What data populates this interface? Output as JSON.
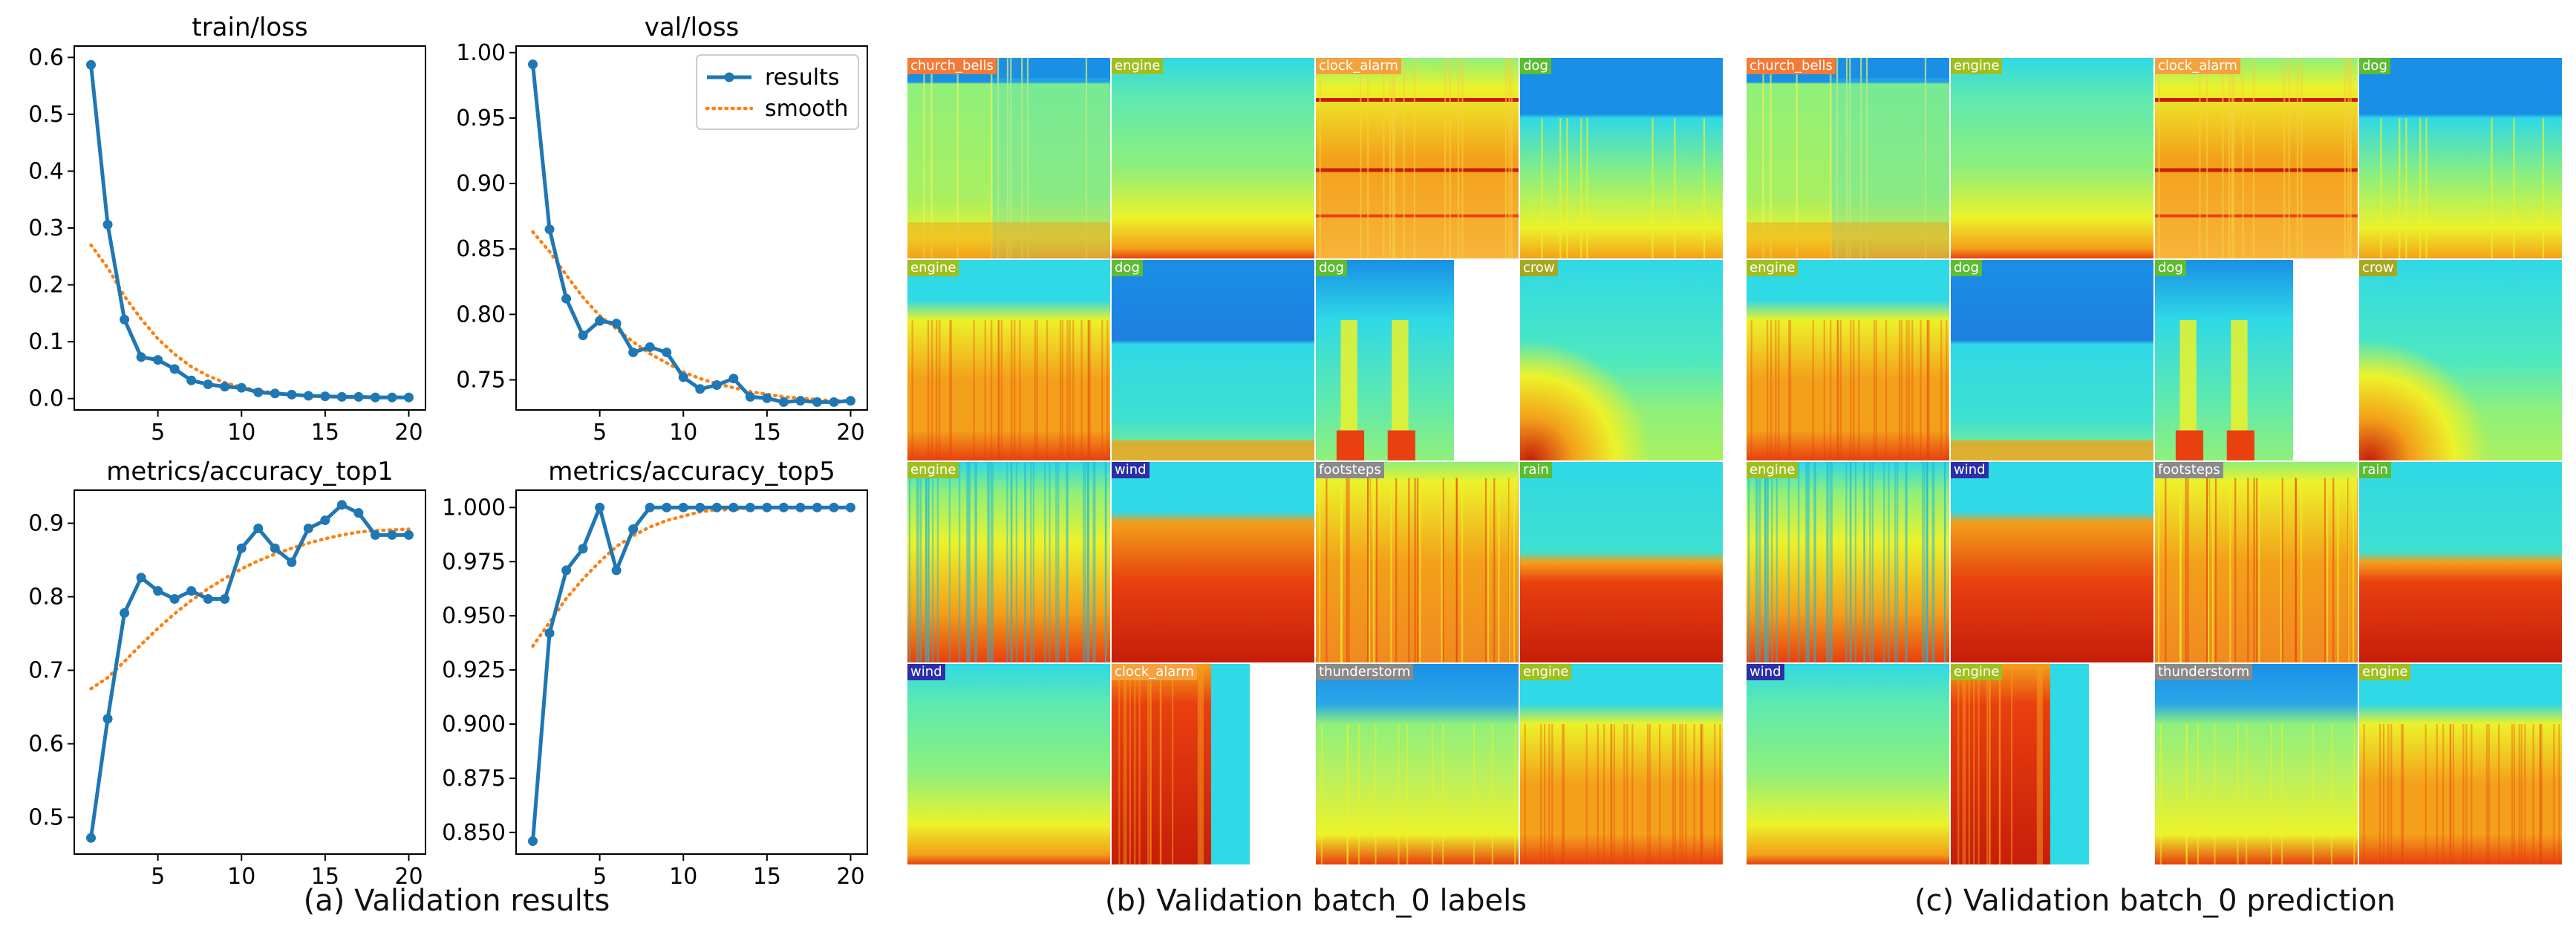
{
  "chart_data": [
    {
      "type": "line",
      "title": "train/loss",
      "x": [
        1,
        2,
        3,
        4,
        5,
        6,
        7,
        8,
        9,
        10,
        11,
        12,
        13,
        14,
        15,
        16,
        17,
        18,
        19,
        20
      ],
      "series": [
        {
          "name": "results",
          "values": [
            0.587,
            0.306,
            0.139,
            0.073,
            0.068,
            0.052,
            0.032,
            0.025,
            0.021,
            0.019,
            0.011,
            0.009,
            0.007,
            0.005,
            0.004,
            0.003,
            0.003,
            0.002,
            0.002,
            0.002
          ]
        },
        {
          "name": "smooth",
          "values": [
            0.27,
            0.23,
            0.18,
            0.14,
            0.105,
            0.078,
            0.056,
            0.04,
            0.028,
            0.02,
            0.014,
            0.01,
            0.007,
            0.005,
            0.004,
            0.003,
            0.002,
            0.002,
            0.002,
            0.002
          ]
        }
      ],
      "xlim": [
        0,
        21
      ],
      "ylim": [
        -0.02,
        0.62
      ],
      "xticks": [
        5,
        10,
        15,
        20
      ],
      "xtick_labels": [
        "5",
        "10",
        "15",
        "20"
      ],
      "yticks": [
        0.0,
        0.1,
        0.2,
        0.3,
        0.4,
        0.5,
        0.6
      ],
      "ytick_labels": [
        "0.0",
        "0.1",
        "0.2",
        "0.3",
        "0.4",
        "0.5",
        "0.6"
      ],
      "grid": false,
      "legend": "none"
    },
    {
      "type": "line",
      "title": "val/loss",
      "x": [
        1,
        2,
        3,
        4,
        5,
        6,
        7,
        8,
        9,
        10,
        11,
        12,
        13,
        14,
        15,
        16,
        17,
        18,
        19,
        20
      ],
      "series": [
        {
          "name": "results",
          "values": [
            0.991,
            0.865,
            0.812,
            0.784,
            0.795,
            0.793,
            0.771,
            0.775,
            0.771,
            0.752,
            0.743,
            0.746,
            0.751,
            0.737,
            0.736,
            0.733,
            0.734,
            0.733,
            0.733,
            0.734
          ]
        },
        {
          "name": "smooth",
          "values": [
            0.863,
            0.848,
            0.83,
            0.813,
            0.799,
            0.789,
            0.779,
            0.77,
            0.763,
            0.756,
            0.751,
            0.747,
            0.744,
            0.741,
            0.739,
            0.737,
            0.736,
            0.735,
            0.734,
            0.734
          ]
        }
      ],
      "xlim": [
        0,
        21
      ],
      "ylim": [
        0.727,
        1.005
      ],
      "xticks": [
        5,
        10,
        15,
        20
      ],
      "xtick_labels": [
        "5",
        "10",
        "15",
        "20"
      ],
      "yticks": [
        0.75,
        0.8,
        0.85,
        0.9,
        0.95,
        1.0
      ],
      "ytick_labels": [
        "0.75",
        "0.80",
        "0.85",
        "0.90",
        "0.95",
        "1.00"
      ],
      "grid": false,
      "legend": "top-right",
      "legend_entries": [
        "results",
        "smooth"
      ]
    },
    {
      "type": "line",
      "title": "metrics/accuracy_top1",
      "x": [
        1,
        2,
        3,
        4,
        5,
        6,
        7,
        8,
        9,
        10,
        11,
        12,
        13,
        14,
        15,
        16,
        17,
        18,
        19,
        20
      ],
      "series": [
        {
          "name": "results",
          "values": [
            0.472,
            0.634,
            0.778,
            0.826,
            0.808,
            0.797,
            0.808,
            0.797,
            0.797,
            0.866,
            0.893,
            0.866,
            0.847,
            0.893,
            0.904,
            0.925,
            0.914,
            0.884,
            0.884,
            0.884
          ]
        },
        {
          "name": "smooth",
          "values": [
            0.675,
            0.69,
            0.712,
            0.735,
            0.757,
            0.777,
            0.795,
            0.811,
            0.825,
            0.838,
            0.849,
            0.858,
            0.866,
            0.873,
            0.879,
            0.884,
            0.888,
            0.89,
            0.891,
            0.892
          ]
        }
      ],
      "xlim": [
        0,
        21
      ],
      "ylim": [
        0.45,
        0.945
      ],
      "xticks": [
        5,
        10,
        15,
        20
      ],
      "xtick_labels": [
        "5",
        "10",
        "15",
        "20"
      ],
      "yticks": [
        0.5,
        0.6,
        0.7,
        0.8,
        0.9
      ],
      "ytick_labels": [
        "0.5",
        "0.6",
        "0.7",
        "0.8",
        "0.9"
      ],
      "grid": false,
      "legend": "none"
    },
    {
      "type": "line",
      "title": "metrics/accuracy_top5",
      "x": [
        1,
        2,
        3,
        4,
        5,
        6,
        7,
        8,
        9,
        10,
        11,
        12,
        13,
        14,
        15,
        16,
        17,
        18,
        19,
        20
      ],
      "series": [
        {
          "name": "results",
          "values": [
            0.846,
            0.942,
            0.971,
            0.981,
            1.0,
            0.971,
            0.99,
            1.0,
            1.0,
            1.0,
            1.0,
            1.0,
            1.0,
            1.0,
            1.0,
            1.0,
            1.0,
            1.0,
            1.0,
            1.0
          ]
        },
        {
          "name": "smooth",
          "values": [
            0.936,
            0.947,
            0.958,
            0.967,
            0.975,
            0.982,
            0.987,
            0.991,
            0.994,
            0.996,
            0.998,
            0.999,
            0.999,
            1.0,
            1.0,
            1.0,
            1.0,
            1.0,
            1.0,
            1.0
          ]
        }
      ],
      "xlim": [
        0,
        21
      ],
      "ylim": [
        0.84,
        1.008
      ],
      "xticks": [
        5,
        10,
        15,
        20
      ],
      "xtick_labels": [
        "5",
        "10",
        "15",
        "20"
      ],
      "yticks": [
        0.85,
        0.875,
        0.9,
        0.925,
        0.95,
        0.975,
        1.0
      ],
      "ytick_labels": [
        "0.850",
        "0.875",
        "0.900",
        "0.925",
        "0.950",
        "0.975",
        "1.000"
      ],
      "grid": false,
      "legend": "none"
    }
  ],
  "colors": {
    "results": "#1f77b4",
    "smooth": "#ff7f0e",
    "label_orange": "#f47a38",
    "label_yellowgreen": "#9fbf1e",
    "label_green": "#5bbd32",
    "label_navy": "#2b2fa8",
    "label_olive": "#a5a822",
    "label_gray": "#8a8a8a",
    "label_lightorange": "#f3a23e"
  },
  "captions": {
    "a": "(a) Validation results",
    "b": "(b) Validation batch_0 labels",
    "c": "(c) Validation batch_0 prediction"
  },
  "batch_labels": {
    "rows": [
      [
        {
          "label": "church_bells",
          "color": "label_orange",
          "style": "bells"
        },
        {
          "label": "engine",
          "color": "label_yellowgreen",
          "style": "flat"
        },
        {
          "label": "clock_alarm",
          "color": "label_lightorange",
          "style": "bands"
        },
        {
          "label": "dog",
          "color": "label_green",
          "style": "bluetop"
        }
      ],
      [
        {
          "label": "engine",
          "color": "label_yellowgreen",
          "style": "warm"
        },
        {
          "label": "dog",
          "color": "label_green",
          "style": "bluebig"
        },
        {
          "label": "dog",
          "color": "label_green",
          "style": "streaks",
          "narrow": true
        },
        {
          "label": "crow",
          "color": "label_olive",
          "style": "crow"
        }
      ],
      [
        {
          "label": "engine",
          "color": "label_yellowgreen",
          "style": "stripes"
        },
        {
          "label": "wind",
          "color": "label_navy",
          "style": "hot"
        },
        {
          "label": "footsteps",
          "color": "label_gray",
          "style": "bars"
        },
        {
          "label": "rain",
          "color": "label_green",
          "style": "rain"
        }
      ],
      [
        {
          "label": "wind",
          "color": "label_navy",
          "style": "flat"
        },
        {
          "label": "clock_alarm",
          "color": "label_lightorange",
          "style": "hotnarrow",
          "narrow": true
        },
        {
          "label": "thunderstorm",
          "color": "label_gray",
          "style": "storm",
          "gap": true
        },
        {
          "label": "engine",
          "color": "label_yellowgreen",
          "style": "warm"
        }
      ]
    ]
  },
  "batch_predictions": {
    "rows": [
      [
        {
          "label": "church_bells",
          "color": "label_orange",
          "style": "bells"
        },
        {
          "label": "engine",
          "color": "label_yellowgreen",
          "style": "flat"
        },
        {
          "label": "clock_alarm",
          "color": "label_lightorange",
          "style": "bands"
        },
        {
          "label": "dog",
          "color": "label_green",
          "style": "bluetop"
        }
      ],
      [
        {
          "label": "engine",
          "color": "label_yellowgreen",
          "style": "warm"
        },
        {
          "label": "dog",
          "color": "label_green",
          "style": "bluebig"
        },
        {
          "label": "dog",
          "color": "label_green",
          "style": "streaks",
          "narrow": true
        },
        {
          "label": "crow",
          "color": "label_olive",
          "style": "crow"
        }
      ],
      [
        {
          "label": "engine",
          "color": "label_yellowgreen",
          "style": "stripes"
        },
        {
          "label": "wind",
          "color": "label_navy",
          "style": "hot"
        },
        {
          "label": "footsteps",
          "color": "label_gray",
          "style": "bars"
        },
        {
          "label": "rain",
          "color": "label_green",
          "style": "rain"
        }
      ],
      [
        {
          "label": "wind",
          "color": "label_navy",
          "style": "flat"
        },
        {
          "label": "engine",
          "color": "label_yellowgreen",
          "style": "hotnarrow",
          "narrow": true
        },
        {
          "label": "thunderstorm",
          "color": "label_gray",
          "style": "storm",
          "gap": true
        },
        {
          "label": "engine",
          "color": "label_yellowgreen",
          "style": "warm"
        }
      ]
    ]
  }
}
